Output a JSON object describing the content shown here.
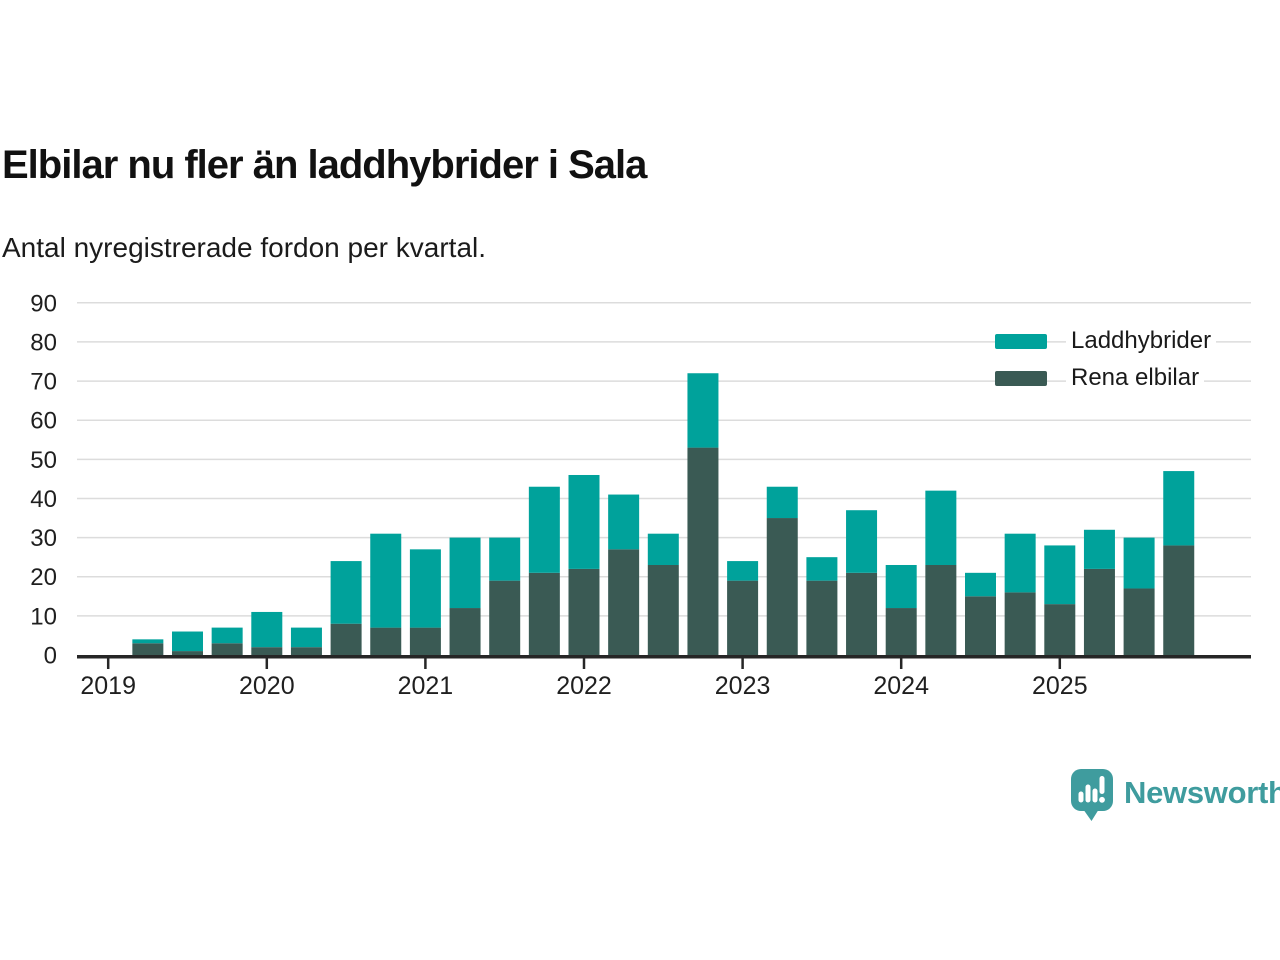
{
  "header": {
    "title": "Elbilar nu fler än laddhybrider i Sala",
    "subtitle": "Antal nyregistrerade fordon per kvartal."
  },
  "legend": {
    "items": [
      {
        "label": "Laddhybrider",
        "color": "#00a29b"
      },
      {
        "label": "Rena elbilar",
        "color": "#3a5a54"
      }
    ]
  },
  "footer": {
    "brand": "Newsworthy",
    "brand_color": "#3f9c9e"
  },
  "chart_data": {
    "type": "bar",
    "stacked": true,
    "title": "Elbilar nu fler än laddhybrider i Sala",
    "subtitle": "Antal nyregistrerade fordon per kvartal.",
    "x": [
      "2019 Q2",
      "2019 Q3",
      "2019 Q4",
      "2020 Q1",
      "2020 Q2",
      "2020 Q3",
      "2020 Q4",
      "2021 Q1",
      "2021 Q2",
      "2021 Q3",
      "2021 Q4",
      "2022 Q1",
      "2022 Q2",
      "2022 Q3",
      "2022 Q4",
      "2023 Q1",
      "2023 Q2",
      "2023 Q3",
      "2023 Q4",
      "2024 Q1",
      "2024 Q2",
      "2024 Q3",
      "2024 Q4",
      "2025 Q1",
      "2025 Q2",
      "2025 Q3",
      "2025 Q4"
    ],
    "series": [
      {
        "name": "Rena elbilar",
        "color": "#3a5a54",
        "values": [
          3,
          1,
          3,
          2,
          2,
          8,
          7,
          7,
          12,
          19,
          21,
          22,
          27,
          23,
          53,
          19,
          35,
          19,
          21,
          12,
          23,
          15,
          16,
          13,
          22,
          17,
          28
        ]
      },
      {
        "name": "Laddhybrider",
        "color": "#00a29b",
        "values": [
          1,
          5,
          4,
          9,
          5,
          16,
          24,
          20,
          18,
          11,
          22,
          24,
          14,
          8,
          19,
          5,
          8,
          6,
          16,
          11,
          19,
          6,
          15,
          15,
          10,
          13,
          19
        ]
      }
    ],
    "totals": [
      4,
      6,
      7,
      11,
      7,
      24,
      31,
      27,
      30,
      30,
      43,
      46,
      41,
      31,
      72,
      24,
      43,
      25,
      37,
      23,
      42,
      21,
      31,
      28,
      32,
      30,
      47
    ],
    "x_tick_labels": [
      "2019",
      "2020",
      "2021",
      "2022",
      "2023",
      "2024",
      "2025"
    ],
    "yticks": [
      0,
      10,
      20,
      30,
      40,
      50,
      60,
      70,
      80,
      90
    ],
    "ylim": [
      0,
      90
    ],
    "grid": true,
    "gridline_color": "#dcdcdc",
    "axis_color": "#262626",
    "tick_label_color": "#1f1f1f",
    "legend_position": "top-right"
  }
}
